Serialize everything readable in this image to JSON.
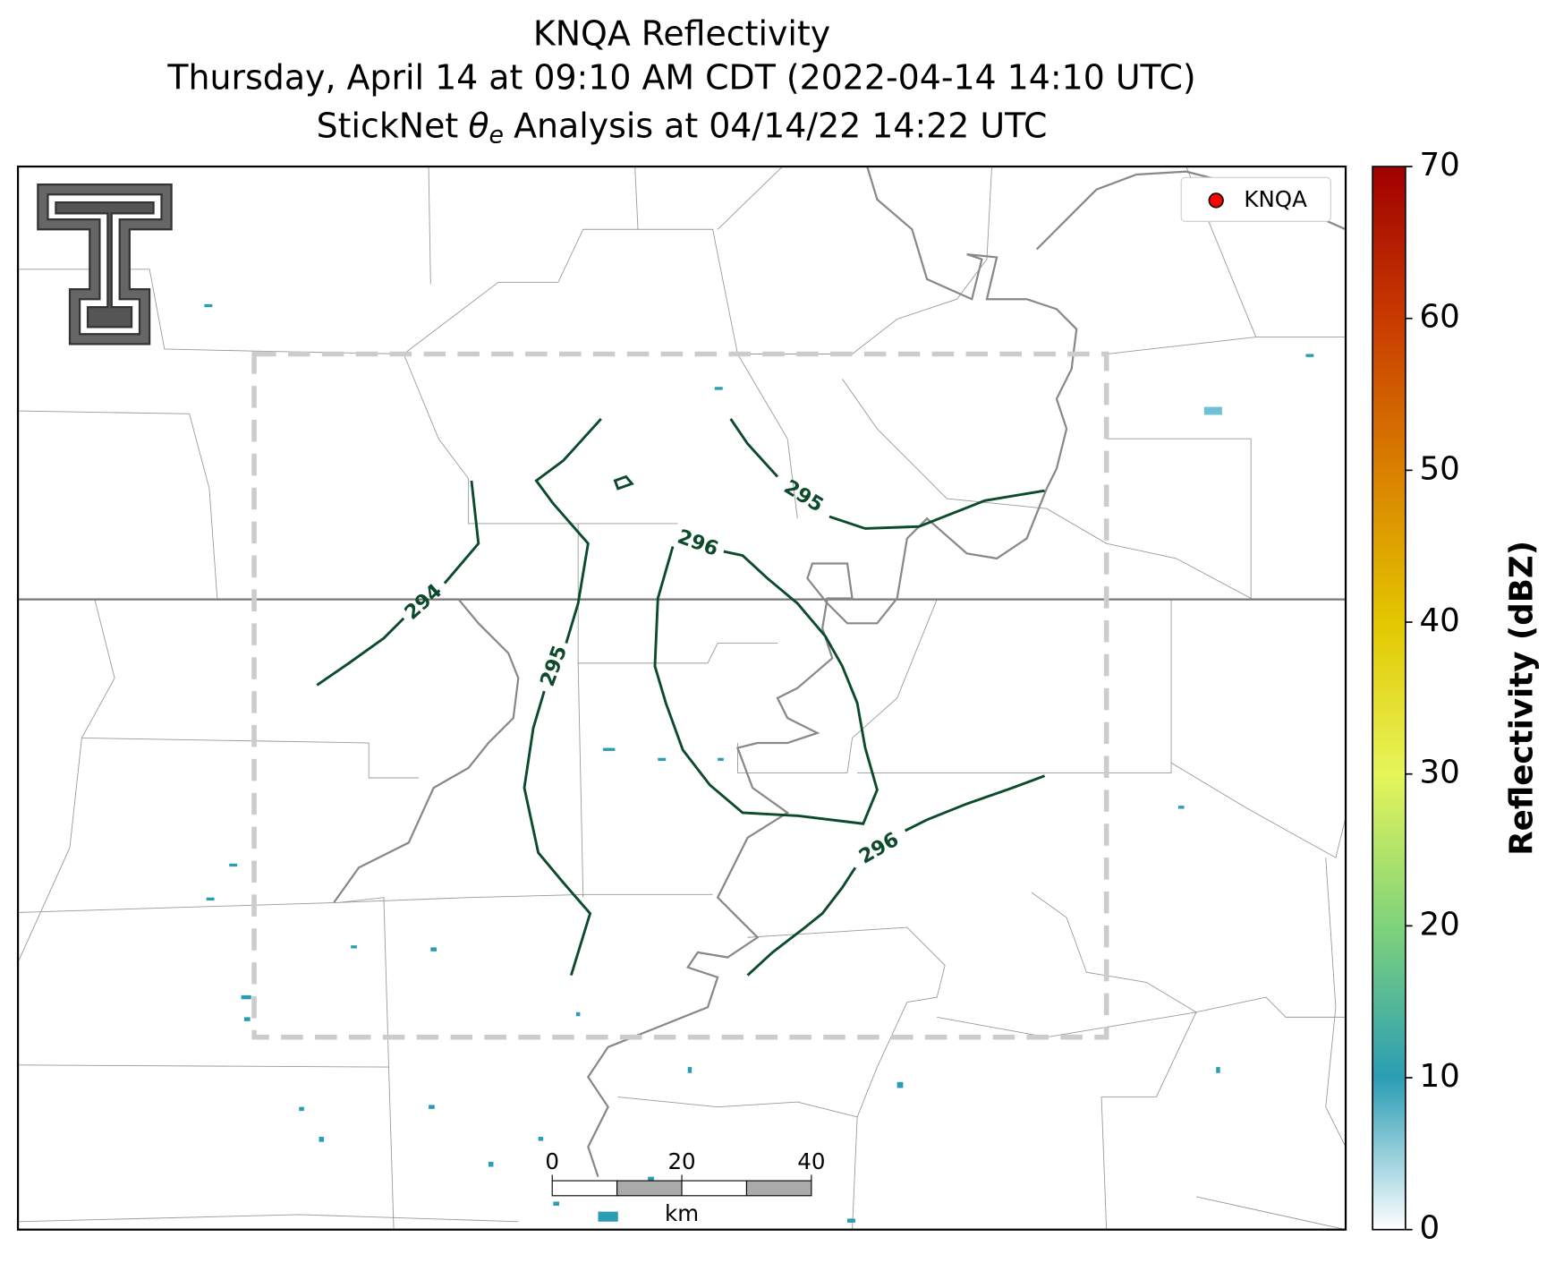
{
  "title": {
    "line1": "KNQA Reflectivity",
    "line2": "Thursday, April 14 at 09:10 AM CDT (2022-04-14 14:10 UTC)",
    "line3": {
      "prefix": "StickNet",
      "symbol": "θ",
      "subscript": "e",
      "suffix": "Analysis at 04/14/22 14:22 UTC"
    }
  },
  "legend": {
    "label": "KNQA",
    "color": "#ff0000"
  },
  "colorbar": {
    "label": "Reflectivity (dBZ)",
    "lim": [
      0,
      70
    ],
    "ticks": [
      0,
      10,
      20,
      30,
      40,
      50,
      60,
      70
    ],
    "colors": [
      "#ffffff",
      "#2a9db5",
      "#7fd37a",
      "#e6f55a",
      "#e3c700",
      "#d98000",
      "#c83a00",
      "#a00000"
    ]
  },
  "contours": [
    {
      "level": 294
    },
    {
      "level": 295
    },
    {
      "level": 295
    },
    {
      "level": 296
    },
    {
      "level": 296
    }
  ],
  "scale_bar": {
    "lim": [
      0,
      40
    ],
    "ticks": [
      0,
      20,
      40
    ],
    "unit": "km"
  }
}
